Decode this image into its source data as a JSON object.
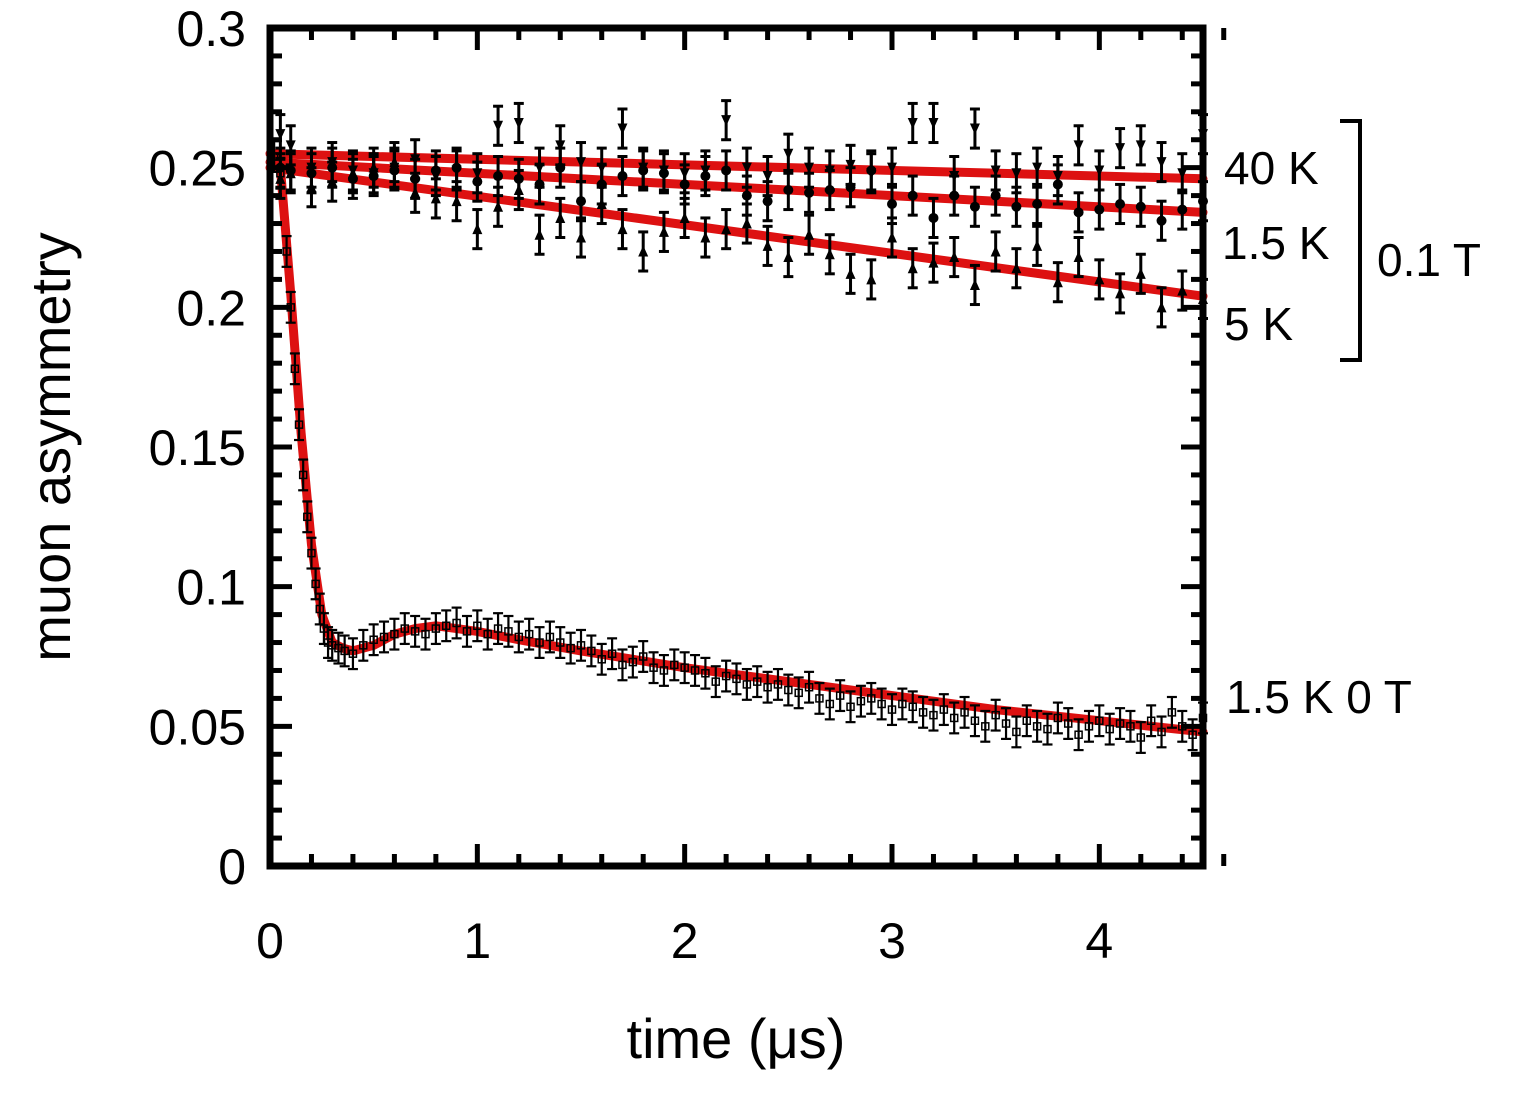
{
  "chart_data": {
    "type": "scatter",
    "xlabel": "time (μs)",
    "ylabel": "muon asymmetry",
    "xlim": [
      0,
      4.5
    ],
    "ylim": [
      0,
      0.3
    ],
    "xticks": [
      "0",
      "1",
      "2",
      "3",
      "4"
    ],
    "yticks": [
      "0",
      "0.05",
      "0.1",
      "0.15",
      "0.2",
      "0.25",
      "0.3"
    ],
    "colors": {
      "fit": "#dd1111",
      "points": "#000000"
    },
    "series": [
      {
        "name": "40 K 0.1 T",
        "marker": "triangle-down",
        "x": [
          0.05,
          0.1,
          0.2,
          0.3,
          0.4,
          0.5,
          0.6,
          0.7,
          0.8,
          0.9,
          1.0,
          1.1,
          1.2,
          1.3,
          1.4,
          1.5,
          1.6,
          1.7,
          1.8,
          1.9,
          2.0,
          2.1,
          2.2,
          2.3,
          2.4,
          2.5,
          2.6,
          2.7,
          2.8,
          2.9,
          3.0,
          3.1,
          3.2,
          3.3,
          3.4,
          3.5,
          3.6,
          3.7,
          3.8,
          3.9,
          4.0,
          4.1,
          4.2,
          4.3,
          4.4,
          4.5
        ],
        "y": [
          0.262,
          0.258,
          0.25,
          0.252,
          0.249,
          0.248,
          0.25,
          0.253,
          0.247,
          0.249,
          0.248,
          0.265,
          0.266,
          0.25,
          0.258,
          0.252,
          0.25,
          0.264,
          0.25,
          0.249,
          0.248,
          0.249,
          0.267,
          0.25,
          0.247,
          0.255,
          0.25,
          0.249,
          0.251,
          0.248,
          0.25,
          0.266,
          0.266,
          0.247,
          0.264,
          0.249,
          0.248,
          0.25,
          0.247,
          0.258,
          0.249,
          0.257,
          0.258,
          0.252,
          0.248,
          0.262
        ]
      },
      {
        "name": "1.5 K 0.1 T",
        "marker": "circle",
        "x": [
          0.05,
          0.1,
          0.2,
          0.3,
          0.4,
          0.5,
          0.6,
          0.7,
          0.8,
          0.9,
          1.0,
          1.1,
          1.2,
          1.3,
          1.4,
          1.5,
          1.6,
          1.7,
          1.8,
          1.9,
          2.0,
          2.1,
          2.2,
          2.3,
          2.4,
          2.5,
          2.6,
          2.7,
          2.8,
          2.9,
          3.0,
          3.1,
          3.2,
          3.3,
          3.4,
          3.5,
          3.6,
          3.7,
          3.8,
          3.9,
          4.0,
          4.1,
          4.2,
          4.3,
          4.4,
          4.5
        ],
        "y": [
          0.25,
          0.249,
          0.248,
          0.25,
          0.246,
          0.247,
          0.249,
          0.246,
          0.249,
          0.25,
          0.245,
          0.247,
          0.246,
          0.244,
          0.25,
          0.238,
          0.244,
          0.247,
          0.249,
          0.248,
          0.244,
          0.247,
          0.249,
          0.24,
          0.238,
          0.242,
          0.241,
          0.242,
          0.243,
          0.249,
          0.237,
          0.24,
          0.232,
          0.24,
          0.236,
          0.24,
          0.236,
          0.237,
          0.244,
          0.234,
          0.235,
          0.237,
          0.236,
          0.231,
          0.235,
          0.238
        ]
      },
      {
        "name": "5 K 0.1 T",
        "marker": "triangle-up",
        "x": [
          0.05,
          0.1,
          0.2,
          0.3,
          0.4,
          0.5,
          0.6,
          0.7,
          0.8,
          0.9,
          1.0,
          1.1,
          1.2,
          1.3,
          1.4,
          1.5,
          1.6,
          1.7,
          1.8,
          1.9,
          2.0,
          2.1,
          2.2,
          2.3,
          2.4,
          2.5,
          2.6,
          2.7,
          2.8,
          2.9,
          3.0,
          3.1,
          3.2,
          3.3,
          3.4,
          3.5,
          3.6,
          3.7,
          3.8,
          3.9,
          4.0,
          4.1,
          4.2,
          4.3,
          4.4,
          4.5
        ],
        "y": [
          0.246,
          0.248,
          0.243,
          0.245,
          0.248,
          0.25,
          0.252,
          0.241,
          0.239,
          0.238,
          0.228,
          0.236,
          0.242,
          0.226,
          0.232,
          0.225,
          0.237,
          0.228,
          0.22,
          0.227,
          0.232,
          0.225,
          0.228,
          0.23,
          0.222,
          0.218,
          0.226,
          0.219,
          0.212,
          0.21,
          0.225,
          0.214,
          0.216,
          0.218,
          0.208,
          0.22,
          0.214,
          0.222,
          0.209,
          0.218,
          0.21,
          0.205,
          0.212,
          0.2,
          0.206,
          0.203
        ]
      },
      {
        "name": "1.5 K 0 T",
        "marker": "square-open",
        "x": [
          0.02,
          0.05,
          0.08,
          0.1,
          0.12,
          0.14,
          0.16,
          0.18,
          0.2,
          0.22,
          0.24,
          0.26,
          0.28,
          0.3,
          0.33,
          0.36,
          0.4,
          0.45,
          0.5,
          0.55,
          0.6,
          0.65,
          0.7,
          0.75,
          0.8,
          0.85,
          0.9,
          0.95,
          1.0,
          1.05,
          1.1,
          1.15,
          1.2,
          1.25,
          1.3,
          1.35,
          1.4,
          1.45,
          1.5,
          1.55,
          1.6,
          1.65,
          1.7,
          1.75,
          1.8,
          1.85,
          1.9,
          1.95,
          2.0,
          2.05,
          2.1,
          2.15,
          2.2,
          2.25,
          2.3,
          2.35,
          2.4,
          2.45,
          2.5,
          2.55,
          2.6,
          2.65,
          2.7,
          2.75,
          2.8,
          2.85,
          2.9,
          2.95,
          3.0,
          3.05,
          3.1,
          3.15,
          3.2,
          3.25,
          3.3,
          3.35,
          3.4,
          3.45,
          3.5,
          3.55,
          3.6,
          3.65,
          3.7,
          3.75,
          3.8,
          3.85,
          3.9,
          3.95,
          4.0,
          4.05,
          4.1,
          4.15,
          4.2,
          4.25,
          4.3,
          4.35,
          4.4,
          4.45,
          4.5
        ],
        "y": [
          0.254,
          0.248,
          0.22,
          0.2,
          0.178,
          0.158,
          0.14,
          0.125,
          0.112,
          0.101,
          0.092,
          0.085,
          0.08,
          0.079,
          0.078,
          0.077,
          0.076,
          0.079,
          0.081,
          0.082,
          0.083,
          0.085,
          0.084,
          0.083,
          0.085,
          0.086,
          0.087,
          0.084,
          0.086,
          0.083,
          0.085,
          0.084,
          0.082,
          0.083,
          0.08,
          0.082,
          0.08,
          0.078,
          0.079,
          0.077,
          0.074,
          0.076,
          0.072,
          0.073,
          0.075,
          0.071,
          0.07,
          0.072,
          0.071,
          0.07,
          0.069,
          0.066,
          0.068,
          0.067,
          0.065,
          0.066,
          0.064,
          0.065,
          0.063,
          0.062,
          0.064,
          0.06,
          0.058,
          0.061,
          0.057,
          0.059,
          0.06,
          0.058,
          0.056,
          0.058,
          0.057,
          0.055,
          0.054,
          0.056,
          0.053,
          0.055,
          0.052,
          0.05,
          0.054,
          0.051,
          0.048,
          0.052,
          0.05,
          0.049,
          0.053,
          0.051,
          0.047,
          0.05,
          0.052,
          0.049,
          0.051,
          0.05,
          0.046,
          0.052,
          0.048,
          0.055,
          0.05,
          0.047,
          0.053
        ]
      }
    ],
    "fits": [
      {
        "name": "40 K fit",
        "x": [
          0,
          4.5
        ],
        "y": [
          0.255,
          0.246
        ]
      },
      {
        "name": "1.5 K 0.1 T fit",
        "x": [
          0,
          4.5
        ],
        "y": [
          0.252,
          0.234
        ]
      },
      {
        "name": "5 K fit",
        "x": [
          0,
          4.5
        ],
        "y": [
          0.25,
          0.204
        ]
      },
      {
        "name": "1.5 K 0 T fit",
        "x": [
          0.02,
          0.05,
          0.1,
          0.15,
          0.2,
          0.25,
          0.3,
          0.35,
          0.4,
          0.5,
          0.6,
          0.7,
          0.8,
          0.9,
          1.0,
          1.2,
          1.5,
          2.0,
          2.5,
          3.0,
          3.5,
          4.0,
          4.5
        ],
        "y": [
          0.255,
          0.25,
          0.205,
          0.155,
          0.115,
          0.09,
          0.08,
          0.078,
          0.077,
          0.079,
          0.083,
          0.085,
          0.086,
          0.085,
          0.084,
          0.081,
          0.077,
          0.071,
          0.066,
          0.061,
          0.056,
          0.052,
          0.048
        ]
      }
    ],
    "annotations": {
      "label_40k": "40 K",
      "label_15k": "1.5 K",
      "label_5k": "5 K",
      "label_field": "0.1 T",
      "label_zf": "1.5 K  0 T"
    }
  }
}
